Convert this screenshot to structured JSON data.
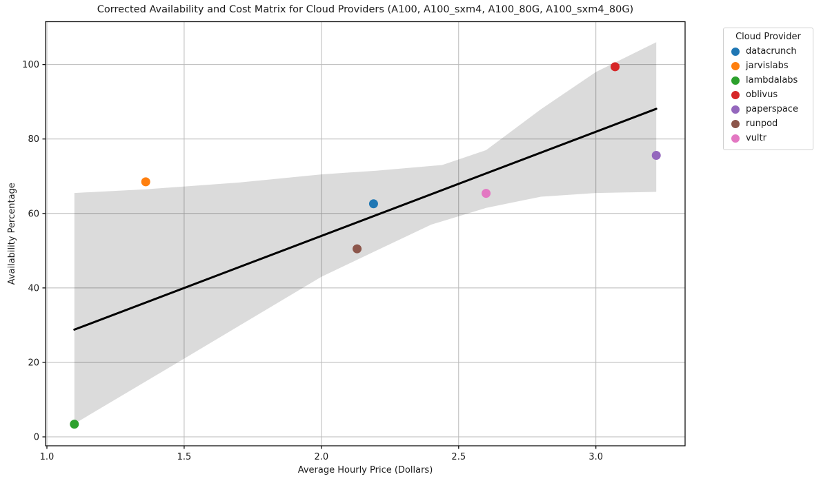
{
  "figure": {
    "title": "Corrected Availability and Cost Matrix for Cloud Providers (A100, A100_sxm4, A100_80G, A100_sxm4_80G)",
    "background_color": "#ffffff"
  },
  "legend": {
    "title": "Cloud Provider",
    "items": [
      {
        "label": "datacrunch",
        "color": "#1f77b4"
      },
      {
        "label": "jarvislabs",
        "color": "#ff7f0e"
      },
      {
        "label": "lambdalabs",
        "color": "#2ca02c"
      },
      {
        "label": "oblivus",
        "color": "#d62728"
      },
      {
        "label": "paperspace",
        "color": "#9467bd"
      },
      {
        "label": "runpod",
        "color": "#8c564b"
      },
      {
        "label": "vultr",
        "color": "#e377c2"
      }
    ]
  },
  "chart_data": {
    "type": "scatter",
    "title": "Corrected Availability and Cost Matrix for Cloud Providers (A100, A100_sxm4, A100_80G, A100_sxm4_80G)",
    "xlabel": "Average Hourly Price (Dollars)",
    "ylabel": "Availability Percentage",
    "xlim": [
      0.995,
      3.325
    ],
    "ylim": [
      -2.4,
      111.5
    ],
    "grid": true,
    "legend_position": "outside upper right",
    "xticks": {
      "values": [
        1.0,
        1.5,
        2.0,
        2.5,
        3.0
      ],
      "labels": [
        "1.0",
        "1.5",
        "2.0",
        "2.5",
        "3.0"
      ]
    },
    "yticks": {
      "values": [
        0,
        20,
        40,
        60,
        80,
        100
      ],
      "labels": [
        "0",
        "20",
        "40",
        "60",
        "80",
        "100"
      ]
    },
    "series": [
      {
        "name": "datacrunch",
        "color": "#1f77b4",
        "points": [
          [
            2.19,
            62.6
          ]
        ]
      },
      {
        "name": "jarvislabs",
        "color": "#ff7f0e",
        "points": [
          [
            1.36,
            68.5
          ]
        ]
      },
      {
        "name": "lambdalabs",
        "color": "#2ca02c",
        "points": [
          [
            1.1,
            3.4
          ]
        ]
      },
      {
        "name": "oblivus",
        "color": "#d62728",
        "points": [
          [
            3.07,
            99.4
          ]
        ]
      },
      {
        "name": "paperspace",
        "color": "#9467bd",
        "points": [
          [
            3.22,
            75.6
          ]
        ]
      },
      {
        "name": "runpod",
        "color": "#8c564b",
        "points": [
          [
            2.13,
            50.5
          ]
        ]
      },
      {
        "name": "vultr",
        "color": "#e377c2",
        "points": [
          [
            2.6,
            65.4
          ]
        ]
      }
    ],
    "regression": {
      "x": [
        1.1,
        3.22
      ],
      "y": [
        28.8,
        88.1
      ],
      "color": "#000000"
    },
    "confidence_band": {
      "color": "rgba(0,0,0,0.14)",
      "upper": [
        [
          1.1,
          65.5
        ],
        [
          1.36,
          66.5
        ],
        [
          1.7,
          68.3
        ],
        [
          2.0,
          70.5
        ],
        [
          2.2,
          71.5
        ],
        [
          2.44,
          73.0
        ],
        [
          2.6,
          77.0
        ],
        [
          2.8,
          88.0
        ],
        [
          3.0,
          98.0
        ],
        [
          3.22,
          106.0
        ]
      ],
      "lower": [
        [
          1.1,
          3.5
        ],
        [
          1.5,
          21.0
        ],
        [
          2.0,
          43.0
        ],
        [
          2.2,
          50.0
        ],
        [
          2.4,
          57.0
        ],
        [
          2.6,
          61.5
        ],
        [
          2.8,
          64.5
        ],
        [
          3.0,
          65.5
        ],
        [
          3.22,
          65.8
        ]
      ]
    },
    "style": {
      "grid_color": "#b9b9b9",
      "spine_color": "#111111",
      "text_color": "#1a1a1a",
      "tick_font_size": 13,
      "label_font_size": 13,
      "marker_radius": 6.5,
      "line_width": 3
    }
  }
}
